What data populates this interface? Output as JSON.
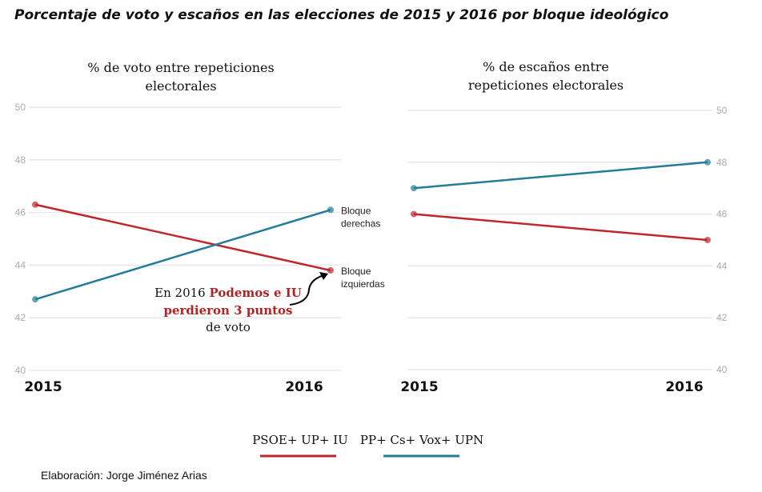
{
  "title": "Porcentaje de voto y escaños en las elecciones de 2015 y 2016 por bloque ideológico",
  "colors": {
    "left": "#c0272d",
    "right": "#237c9a",
    "grid": "#e8e8e8"
  },
  "chart_data": [
    {
      "type": "line",
      "title_lines": [
        "% de voto entre repeticiones",
        "electorales"
      ],
      "x": [
        "2015",
        "2016"
      ],
      "ylim": [
        40,
        50
      ],
      "yticks": [
        40,
        42,
        44,
        46,
        48,
        50
      ],
      "yaxis": "left",
      "series": [
        {
          "name": "PSOE+ UP+ IU",
          "values": [
            46.3,
            43.8
          ],
          "label_lines": [
            "Bloque",
            "izquierdas"
          ]
        },
        {
          "name": "PP+ Cs+ Vox+ UPN",
          "values": [
            42.7,
            46.1
          ],
          "label_lines": [
            "Bloque",
            "derechas"
          ]
        }
      ],
      "annotation": {
        "pre": "En 2016 ",
        "bold1": "Podemos e IU",
        "bold2": "perdieron 3 puntos",
        "post": "de voto"
      }
    },
    {
      "type": "line",
      "title_lines": [
        "% de escaños entre",
        "repeticiones electorales"
      ],
      "x": [
        "2015",
        "2016"
      ],
      "ylim": [
        40,
        50
      ],
      "yticks": [
        40,
        42,
        44,
        46,
        48,
        50
      ],
      "yaxis": "right",
      "series": [
        {
          "name": "PSOE+ UP+ IU",
          "values": [
            46,
            45
          ]
        },
        {
          "name": "PP+ Cs+ Vox+ UPN",
          "values": [
            47,
            48
          ]
        }
      ]
    }
  ],
  "legend": [
    "PSOE+ UP+ IU",
    "PP+ Cs+ Vox+ UPN"
  ],
  "credit": "Elaboración: Jorge Jiménez Arias"
}
